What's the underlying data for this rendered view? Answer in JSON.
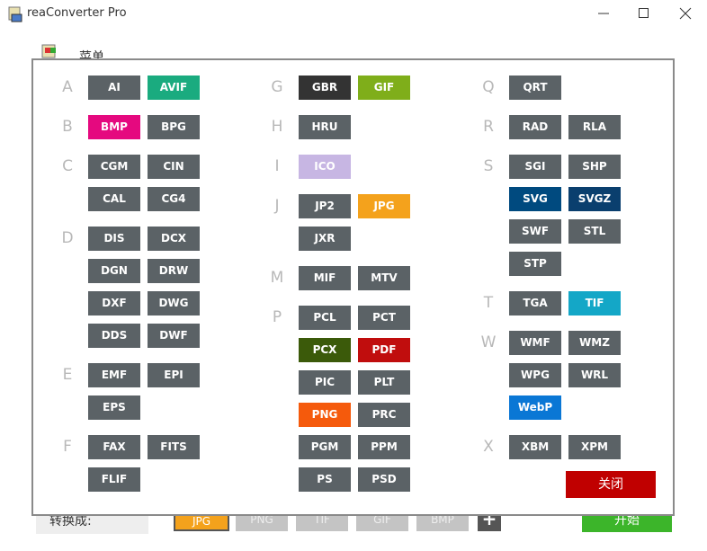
{
  "window": {
    "title": "reaConverter Pro"
  },
  "background": {
    "menu": "菜单",
    "convert_label": "转换成:",
    "formats": [
      "JPG",
      "PNG",
      "TIF",
      "GIF",
      "BMP"
    ],
    "selected_color": "#f4a21c",
    "add": "+",
    "start": "开始"
  },
  "dialog": {
    "columns": [
      [
        {
          "letter": "A",
          "items": [
            {
              "label": "AI"
            },
            {
              "label": "AVIF",
              "color": "#1aab7f"
            }
          ]
        },
        {
          "letter": "B",
          "items": [
            {
              "label": "BMP",
              "color": "#e5097f"
            },
            {
              "label": "BPG"
            }
          ]
        },
        {
          "letter": "C",
          "items": [
            {
              "label": "CGM"
            },
            {
              "label": "CIN"
            },
            {
              "label": "CAL"
            },
            {
              "label": "CG4"
            }
          ]
        },
        {
          "letter": "D",
          "items": [
            {
              "label": "DIS"
            },
            {
              "label": "DCX"
            },
            {
              "label": "DGN"
            },
            {
              "label": "DRW"
            },
            {
              "label": "DXF"
            },
            {
              "label": "DWG"
            },
            {
              "label": "DDS"
            },
            {
              "label": "DWF"
            }
          ]
        },
        {
          "letter": "E",
          "items": [
            {
              "label": "EMF"
            },
            {
              "label": "EPI"
            },
            {
              "label": "EPS"
            }
          ]
        },
        {
          "letter": "F",
          "items": [
            {
              "label": "FAX"
            },
            {
              "label": "FITS"
            },
            {
              "label": "FLIF"
            }
          ]
        }
      ],
      [
        {
          "letter": "G",
          "items": [
            {
              "label": "GBR",
              "color": "#333333"
            },
            {
              "label": "GIF",
              "color": "#7fae1a"
            }
          ]
        },
        {
          "letter": "H",
          "items": [
            {
              "label": "HRU"
            }
          ]
        },
        {
          "letter": "I",
          "items": [
            {
              "label": "ICO",
              "color": "#c7b6e3"
            }
          ]
        },
        {
          "letter": "J",
          "items": [
            {
              "label": "JP2"
            },
            {
              "label": "JPG",
              "color": "#f4a21c"
            },
            {
              "label": "JXR"
            }
          ]
        },
        {
          "letter": "M",
          "items": [
            {
              "label": "MIF"
            },
            {
              "label": "MTV"
            }
          ]
        },
        {
          "letter": "P",
          "items": [
            {
              "label": "PCL"
            },
            {
              "label": "PCT"
            },
            {
              "label": "PCX",
              "color": "#3b5a0a"
            },
            {
              "label": "PDF",
              "color": "#c00d0d"
            },
            {
              "label": "PIC"
            },
            {
              "label": "PLT"
            },
            {
              "label": "PNG",
              "color": "#f55a0c"
            },
            {
              "label": "PRC"
            },
            {
              "label": "PGM"
            },
            {
              "label": "PPM"
            },
            {
              "label": "PS"
            },
            {
              "label": "PSD"
            }
          ]
        }
      ],
      [
        {
          "letter": "Q",
          "items": [
            {
              "label": "QRT"
            }
          ]
        },
        {
          "letter": "R",
          "items": [
            {
              "label": "RAD"
            },
            {
              "label": "RLA"
            }
          ]
        },
        {
          "letter": "S",
          "items": [
            {
              "label": "SGI"
            },
            {
              "label": "SHP"
            },
            {
              "label": "SVG",
              "color": "#004a7f"
            },
            {
              "label": "SVGZ",
              "color": "#0a3f6e"
            },
            {
              "label": "SWF"
            },
            {
              "label": "STL"
            },
            {
              "label": "STP"
            }
          ]
        },
        {
          "letter": "T",
          "items": [
            {
              "label": "TGA"
            },
            {
              "label": "TIF",
              "color": "#14a7c7"
            }
          ]
        },
        {
          "letter": "W",
          "items": [
            {
              "label": "WMF"
            },
            {
              "label": "WMZ"
            },
            {
              "label": "WPG"
            },
            {
              "label": "WRL"
            },
            {
              "label": "WebP",
              "color": "#0a77d5"
            }
          ]
        },
        {
          "letter": "X",
          "items": [
            {
              "label": "XBM"
            },
            {
              "label": "XPM"
            }
          ]
        }
      ]
    ],
    "close": "关闭"
  }
}
